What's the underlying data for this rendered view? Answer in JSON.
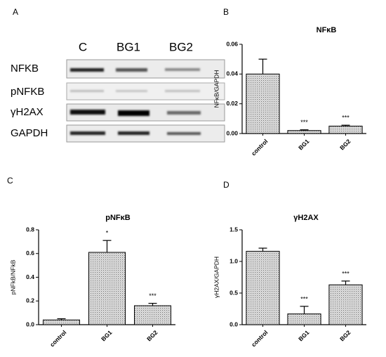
{
  "panel_labels": [
    "A",
    "B",
    "C",
    "D"
  ],
  "blot": {
    "lanes": [
      "C",
      "BG1",
      "BG2"
    ],
    "rows": [
      "NFKB",
      "pNFKB",
      "γH2AX",
      "GAPDH"
    ]
  },
  "chart_data": [
    {
      "type": "bar",
      "title": "NFκB",
      "y_label": "NFκB/GAPDH",
      "categories": [
        "control",
        "BG1",
        "BG2"
      ],
      "values": [
        0.04,
        0.002,
        0.005
      ],
      "errors": [
        0.01,
        0.0005,
        0.0006
      ],
      "significance": [
        null,
        "***",
        "***"
      ],
      "ylim": [
        0,
        0.06
      ],
      "yticks": [
        {
          "value": 0,
          "label": "0.00"
        },
        {
          "value": 0.02,
          "label": "0.02"
        },
        {
          "value": 0.04,
          "label": "0.04"
        },
        {
          "value": 0.06,
          "label": "0.06"
        }
      ]
    },
    {
      "type": "bar",
      "title": "pNFκB",
      "y_label": "pNFkB/NFkB",
      "categories": [
        "control",
        "BG1",
        "BG2"
      ],
      "values": [
        0.04,
        0.61,
        0.16
      ],
      "errors": [
        0.01,
        0.1,
        0.02
      ],
      "significance": [
        null,
        "*",
        "***"
      ],
      "ylim": [
        0,
        0.8
      ],
      "yticks": [
        {
          "value": 0,
          "label": "0.0"
        },
        0.2,
        0.4,
        0.6,
        0.8
      ]
    },
    {
      "type": "bar",
      "title": "γH2AX",
      "y_label": "γH2AX/GAPDH",
      "categories": [
        "control",
        "BG1",
        "BG2"
      ],
      "values": [
        1.16,
        0.17,
        0.63
      ],
      "errors": [
        0.05,
        0.12,
        0.06
      ],
      "significance": [
        null,
        "***",
        "***"
      ],
      "ylim": [
        0,
        1.5
      ],
      "yticks": [
        {
          "value": 0,
          "label": "0.0"
        },
        0.5,
        {
          "value": 1,
          "label": "1.0"
        },
        1.5
      ]
    }
  ]
}
